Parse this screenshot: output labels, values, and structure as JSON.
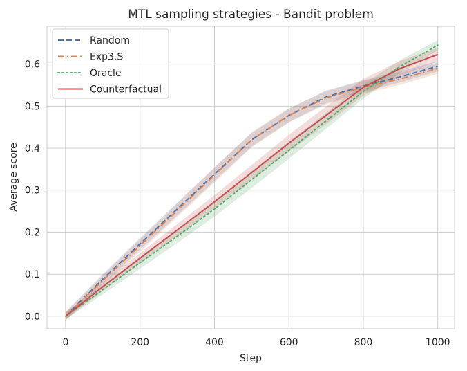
{
  "chart_data": {
    "type": "line",
    "title": "MTL sampling strategies - Bandit problem",
    "xlabel": "Step",
    "ylabel": "Average score",
    "xlim": [
      -50,
      1045
    ],
    "ylim": [
      -0.03,
      0.69
    ],
    "x_ticks": [
      0,
      200,
      400,
      600,
      800,
      1000
    ],
    "x_tick_labels": [
      "0",
      "200",
      "400",
      "600",
      "800",
      "1000"
    ],
    "y_ticks": [
      0.0,
      0.1,
      0.2,
      0.3,
      0.4,
      0.5,
      0.6
    ],
    "y_tick_labels": [
      "0.0",
      "0.1",
      "0.2",
      "0.3",
      "0.4",
      "0.5",
      "0.6"
    ],
    "grid": true,
    "legend_position": "upper-left",
    "series": [
      {
        "name": "Random",
        "color": "#4c72b0",
        "line_style": "dashed",
        "x": [
          0,
          100,
          200,
          300,
          400,
          500,
          600,
          700,
          800,
          900,
          1000
        ],
        "values": [
          0.0,
          0.088,
          0.172,
          0.255,
          0.338,
          0.42,
          0.478,
          0.522,
          0.548,
          0.57,
          0.595
        ],
        "band": [
          0.01,
          0.012,
          0.014,
          0.015,
          0.016,
          0.016,
          0.016,
          0.015,
          0.014,
          0.013,
          0.012
        ]
      },
      {
        "name": "Exp3.S",
        "color": "#dd8452",
        "line_style": "dashdot",
        "x": [
          0,
          100,
          200,
          300,
          400,
          500,
          600,
          700,
          800,
          900,
          1000
        ],
        "values": [
          0.0,
          0.085,
          0.168,
          0.252,
          0.336,
          0.42,
          0.478,
          0.52,
          0.545,
          0.565,
          0.59
        ],
        "band": [
          0.01,
          0.012,
          0.015,
          0.016,
          0.018,
          0.018,
          0.017,
          0.016,
          0.015,
          0.014,
          0.013
        ]
      },
      {
        "name": "Oracle",
        "color": "#55a868",
        "line_style": "dotted",
        "x": [
          0,
          100,
          200,
          300,
          400,
          500,
          600,
          700,
          800,
          900,
          1000
        ],
        "values": [
          0.0,
          0.063,
          0.127,
          0.19,
          0.255,
          0.325,
          0.395,
          0.465,
          0.535,
          0.595,
          0.645
        ],
        "band": [
          0.008,
          0.011,
          0.014,
          0.016,
          0.018,
          0.02,
          0.02,
          0.019,
          0.017,
          0.015,
          0.012
        ]
      },
      {
        "name": "Counterfactual",
        "color": "#c44e52",
        "line_style": "solid",
        "x": [
          0,
          100,
          200,
          300,
          400,
          500,
          600,
          700,
          800,
          900,
          1000
        ],
        "values": [
          0.0,
          0.07,
          0.138,
          0.205,
          0.272,
          0.342,
          0.412,
          0.478,
          0.545,
          0.59,
          0.623
        ],
        "band": [
          0.008,
          0.01,
          0.012,
          0.014,
          0.016,
          0.018,
          0.02,
          0.021,
          0.02,
          0.018,
          0.016
        ]
      }
    ]
  }
}
